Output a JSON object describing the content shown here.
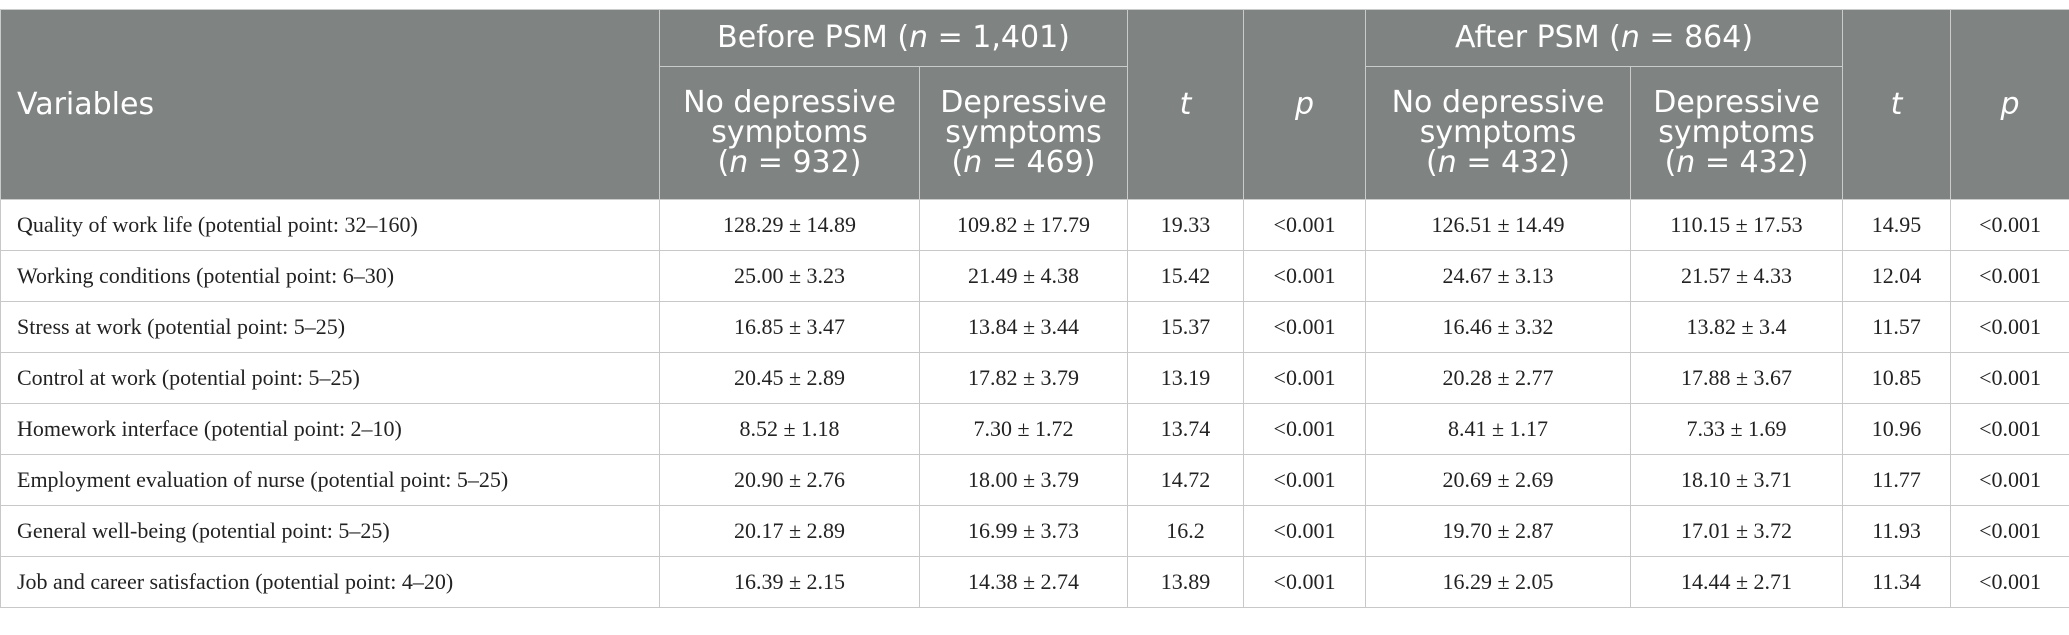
{
  "header": {
    "variables": "Variables",
    "before": {
      "prefix": "Before PSM (",
      "n": "n",
      "suffix": " = 1,401)"
    },
    "after": {
      "prefix": "After PSM (",
      "n": "n",
      "suffix": " = 864)"
    },
    "before_no_dep": {
      "line1": "No depressive",
      "line2": "symptoms",
      "n": "n",
      "suffix": " = 932)"
    },
    "before_dep": {
      "line1": "Depressive",
      "line2": "symptoms",
      "n": "n",
      "suffix": " = 469)"
    },
    "after_no_dep": {
      "line1": "No depressive",
      "line2": "symptoms",
      "n": "n",
      "suffix": " = 432)"
    },
    "after_dep": {
      "line1": "Depressive",
      "line2": "symptoms",
      "n": "n",
      "suffix": " = 432)"
    },
    "t": "t",
    "p": "p"
  },
  "rows": [
    {
      "variable": "Quality of work life (potential point: 32–160)",
      "b_no": "128.29 ± 14.89",
      "b_dep": "109.82 ± 17.79",
      "b_t": "19.33",
      "b_p": "<0.001",
      "a_no": "126.51 ± 14.49",
      "a_dep": "110.15 ± 17.53",
      "a_t": "14.95",
      "a_p": "<0.001"
    },
    {
      "variable": "Working conditions (potential point: 6–30)",
      "b_no": "25.00 ± 3.23",
      "b_dep": "21.49 ± 4.38",
      "b_t": "15.42",
      "b_p": "<0.001",
      "a_no": "24.67 ± 3.13",
      "a_dep": "21.57 ± 4.33",
      "a_t": "12.04",
      "a_p": "<0.001"
    },
    {
      "variable": "Stress at work (potential point: 5–25)",
      "b_no": "16.85 ± 3.47",
      "b_dep": "13.84 ± 3.44",
      "b_t": "15.37",
      "b_p": "<0.001",
      "a_no": "16.46 ± 3.32",
      "a_dep": "13.82 ± 3.4",
      "a_t": "11.57",
      "a_p": "<0.001"
    },
    {
      "variable": "Control at work (potential point: 5–25)",
      "b_no": "20.45 ± 2.89",
      "b_dep": "17.82 ± 3.79",
      "b_t": "13.19",
      "b_p": "<0.001",
      "a_no": "20.28 ± 2.77",
      "a_dep": "17.88 ± 3.67",
      "a_t": "10.85",
      "a_p": "<0.001"
    },
    {
      "variable": "Homework interface (potential point: 2–10)",
      "b_no": "8.52 ± 1.18",
      "b_dep": "7.30 ± 1.72",
      "b_t": "13.74",
      "b_p": "<0.001",
      "a_no": "8.41 ± 1.17",
      "a_dep": "7.33 ± 1.69",
      "a_t": "10.96",
      "a_p": "<0.001"
    },
    {
      "variable": "Employment evaluation of nurse (potential point: 5–25)",
      "b_no": "20.90 ± 2.76",
      "b_dep": "18.00 ± 3.79",
      "b_t": "14.72",
      "b_p": "<0.001",
      "a_no": "20.69 ± 2.69",
      "a_dep": "18.10 ± 3.71",
      "a_t": "11.77",
      "a_p": "<0.001"
    },
    {
      "variable": "General well-being (potential point: 5–25)",
      "b_no": "20.17 ± 2.89",
      "b_dep": "16.99 ± 3.73",
      "b_t": "16.2",
      "b_p": "<0.001",
      "a_no": "19.70 ± 2.87",
      "a_dep": "17.01 ± 3.72",
      "a_t": "11.93",
      "a_p": "<0.001"
    },
    {
      "variable": "Job and career satisfaction (potential point: 4–20)",
      "b_no": "16.39 ± 2.15",
      "b_dep": "14.38 ± 2.74",
      "b_t": "13.89",
      "b_p": "<0.001",
      "a_no": "16.29 ± 2.05",
      "a_dep": "14.44 ± 2.71",
      "a_t": "11.34",
      "a_p": "<0.001"
    }
  ]
}
